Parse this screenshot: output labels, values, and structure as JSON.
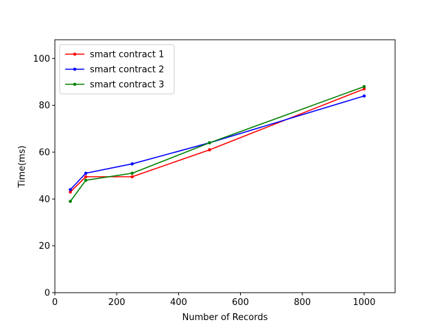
{
  "chart_data": {
    "type": "line",
    "title": "",
    "xlabel": "Number of Records",
    "ylabel": "Time(ms)",
    "xlim": [
      0,
      1100
    ],
    "ylim": [
      0,
      108
    ],
    "xticks": [
      0,
      200,
      400,
      600,
      800,
      1000
    ],
    "yticks": [
      0,
      20,
      40,
      60,
      80,
      100
    ],
    "grid": false,
    "legend_position": "top-left",
    "x": [
      50,
      100,
      250,
      500,
      1000
    ],
    "series": [
      {
        "name": "smart contract 1",
        "color": "#ff0000",
        "values": [
          43,
          49.5,
          49.5,
          61,
          87
        ]
      },
      {
        "name": "smart contract 2",
        "color": "#0000ff",
        "values": [
          44,
          51,
          55,
          64,
          84
        ]
      },
      {
        "name": "smart contract 3",
        "color": "#008000",
        "values": [
          39,
          48,
          51,
          64,
          88
        ]
      }
    ]
  }
}
